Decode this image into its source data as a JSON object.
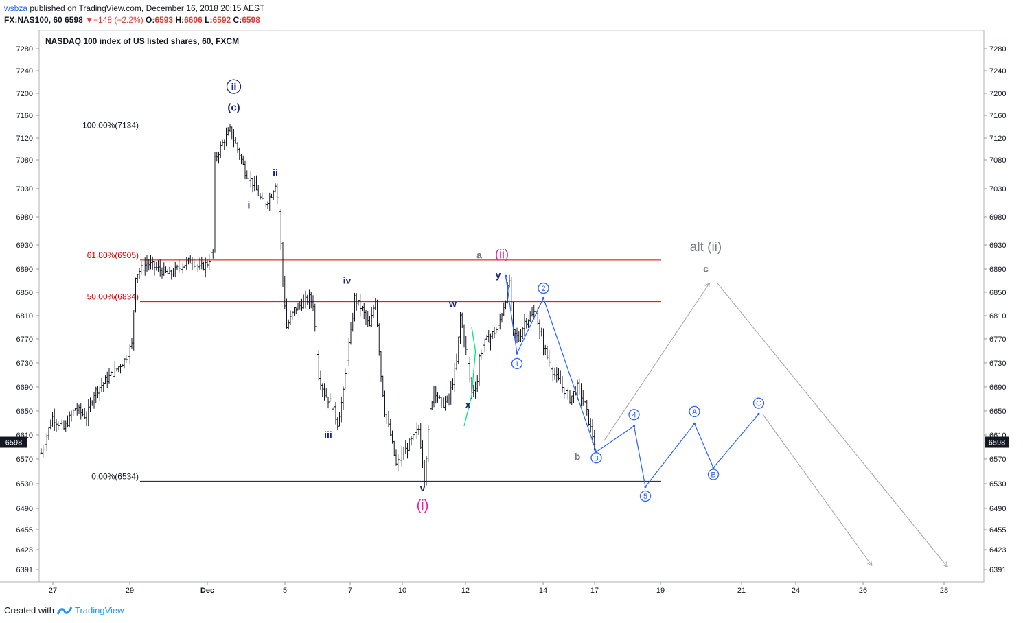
{
  "header": {
    "user": "wsbza",
    "published": "published on TradingView.com, December 16, 2018 20:15 AEST",
    "symbol": "FX:NAS100, 60",
    "last": "6598",
    "change_arrow": "▼",
    "change": "−148 (−2.2%)",
    "o_label": "O:",
    "o_value": "6593",
    "h_label": "H:",
    "h_value": "6606",
    "l_label": "L:",
    "l_value": "6592",
    "c_label": "C:",
    "c_value": "6598"
  },
  "footer": {
    "created_with": "Created with",
    "brand": "TradingView"
  },
  "chart_data": {
    "type": "candlestick",
    "title": "NASDAQ 100 index of US listed shares, 60, FXCM",
    "y_ticks": [
      7280,
      7240,
      7200,
      7160,
      7120,
      7080,
      7030,
      6980,
      6930,
      6890,
      6850,
      6810,
      6770,
      6730,
      6690,
      6650,
      6610,
      6570,
      6530,
      6490,
      6455,
      6423,
      6391
    ],
    "x_ticks": [
      "27",
      "29",
      "Dec",
      "5",
      "7",
      "10",
      "12",
      "14",
      "17",
      "19",
      "21",
      "24",
      "26",
      "28"
    ],
    "current_price": "6598",
    "price_path": [
      [
        0,
        6580
      ],
      [
        3,
        6640
      ],
      [
        6,
        6620
      ],
      [
        9,
        6655
      ],
      [
        12,
        6640
      ],
      [
        14,
        6680
      ],
      [
        17,
        6700
      ],
      [
        20,
        6720
      ],
      [
        22,
        6735
      ],
      [
        24,
        6760
      ],
      [
        25,
        6880
      ],
      [
        28,
        6900
      ],
      [
        31,
        6890
      ],
      [
        34,
        6880
      ],
      [
        37,
        6895
      ],
      [
        40,
        6905
      ],
      [
        42,
        6890
      ],
      [
        44,
        6900
      ],
      [
        45.5,
        6920
      ],
      [
        46,
        7080
      ],
      [
        48,
        7110
      ],
      [
        50,
        7134
      ],
      [
        52,
        7100
      ],
      [
        54,
        7060
      ],
      [
        56,
        7040
      ],
      [
        57.5,
        7020
      ],
      [
        59,
        7000
      ],
      [
        61,
        7020
      ],
      [
        62,
        7040
      ],
      [
        63,
        6990
      ],
      [
        64,
        6870
      ],
      [
        65,
        6790
      ],
      [
        67,
        6820
      ],
      [
        69,
        6830
      ],
      [
        71,
        6840
      ],
      [
        72,
        6830
      ],
      [
        73.5,
        6710
      ],
      [
        75,
        6680
      ],
      [
        77,
        6660
      ],
      [
        78.5,
        6630
      ],
      [
        80,
        6680
      ],
      [
        81,
        6740
      ],
      [
        82,
        6780
      ],
      [
        83,
        6840
      ],
      [
        85,
        6820
      ],
      [
        87,
        6790
      ],
      [
        88.5,
        6840
      ],
      [
        90,
        6710
      ],
      [
        91,
        6650
      ],
      [
        92.5,
        6610
      ],
      [
        94,
        6560
      ],
      [
        96,
        6580
      ],
      [
        98,
        6600
      ],
      [
        100,
        6620
      ],
      [
        101,
        6570
      ],
      [
        101.5,
        6540
      ],
      [
        103,
        6650
      ],
      [
        104,
        6690
      ],
      [
        106,
        6660
      ],
      [
        108,
        6670
      ],
      [
        110,
        6730
      ],
      [
        111,
        6810
      ],
      [
        112.5,
        6750
      ],
      [
        114,
        6680
      ],
      [
        115.5,
        6700
      ],
      [
        116,
        6740
      ],
      [
        117,
        6760
      ],
      [
        119,
        6775
      ],
      [
        121,
        6790
      ],
      [
        123,
        6840
      ],
      [
        124,
        6870
      ],
      [
        125,
        6780
      ],
      [
        126.5,
        6770
      ],
      [
        128,
        6800
      ],
      [
        130,
        6810
      ],
      [
        131,
        6820
      ],
      [
        132,
        6780
      ],
      [
        134,
        6740
      ],
      [
        136,
        6710
      ],
      [
        138,
        6690
      ],
      [
        140,
        6670
      ],
      [
        142,
        6690
      ],
      [
        144,
        6660
      ],
      [
        145.5,
        6620
      ],
      [
        146.5,
        6598
      ]
    ],
    "fib_levels": [
      {
        "label": "100.00%(7134)",
        "value": 7134,
        "color": "#131722"
      },
      {
        "label": "61.80%(6905)",
        "value": 6905,
        "color": "#d50000"
      },
      {
        "label": "50.00%(6834)",
        "value": 6834,
        "color": "#d50000"
      },
      {
        "label": "0.00%(6534)",
        "value": 6534,
        "color": "#131722"
      }
    ],
    "wave_labels": [
      {
        "text": "(c)",
        "x": 51,
        "y": 7168,
        "color": "#1a237e",
        "bold": true,
        "size": 15
      },
      {
        "text": "ii",
        "x": 62,
        "y": 7052,
        "color": "#1a237e",
        "bold": true,
        "size": 14
      },
      {
        "text": "i",
        "x": 55,
        "y": 6995,
        "color": "#1a237e",
        "bold": true,
        "size": 14
      },
      {
        "text": "iv",
        "x": 81,
        "y": 6865,
        "color": "#1a237e",
        "bold": true,
        "size": 14
      },
      {
        "text": "iii",
        "x": 76,
        "y": 6605,
        "color": "#1a237e",
        "bold": true,
        "size": 14
      },
      {
        "text": "w",
        "x": 109,
        "y": 6825,
        "color": "#1a237e",
        "bold": true,
        "size": 14
      },
      {
        "text": "x",
        "x": 113,
        "y": 6655,
        "color": "#1a237e",
        "bold": true,
        "size": 14
      },
      {
        "text": "a",
        "x": 116,
        "y": 6908,
        "color": "#787b86",
        "bold": true,
        "size": 14
      },
      {
        "text": "(ii)",
        "x": 122,
        "y": 6908,
        "color": "#e91e9f",
        "bold": false,
        "size": 18
      },
      {
        "text": "y",
        "x": 121,
        "y": 6874,
        "color": "#1a237e",
        "bold": true,
        "size": 14
      },
      {
        "text": "v",
        "x": 101,
        "y": 6518,
        "color": "#1a237e",
        "bold": true,
        "size": 14
      },
      {
        "text": "(i)",
        "x": 101,
        "y": 6488,
        "color": "#e91e9f",
        "bold": false,
        "size": 20
      },
      {
        "text": "b",
        "x": 142,
        "y": 6569,
        "color": "#787b86",
        "bold": true,
        "size": 14
      },
      {
        "text": "alt (ii)",
        "x": 176,
        "y": 6920,
        "color": "#787b86",
        "bold": false,
        "size": 19
      },
      {
        "text": "c",
        "x": 176,
        "y": 6885,
        "color": "#787b86",
        "bold": true,
        "size": 14
      }
    ],
    "circle_labels": [
      {
        "text": "ii",
        "x": 51,
        "y": 7212,
        "color": "#1a237e",
        "bold": true
      },
      {
        "text": "1",
        "x": 126,
        "y": 6729,
        "color": "#2962ff",
        "bold": false
      },
      {
        "text": "2",
        "x": 133,
        "y": 6857,
        "color": "#2962ff",
        "bold": false
      },
      {
        "text": "3",
        "x": 147,
        "y": 6572,
        "color": "#2962ff",
        "bold": false
      },
      {
        "text": "4",
        "x": 157,
        "y": 6644,
        "color": "#2962ff",
        "bold": false
      },
      {
        "text": "5",
        "x": 160,
        "y": 6510,
        "color": "#2962ff",
        "bold": false
      },
      {
        "text": "A",
        "x": 173,
        "y": 6649,
        "color": "#2962ff",
        "bold": false
      },
      {
        "text": "B",
        "x": 178,
        "y": 6545,
        "color": "#2962ff",
        "bold": false
      },
      {
        "text": "C",
        "x": 190,
        "y": 6663,
        "color": "#2962ff",
        "bold": false
      }
    ],
    "projection_blue": [
      [
        123,
        6878
      ],
      [
        126,
        6746
      ],
      [
        133,
        6840
      ],
      [
        147,
        6582
      ],
      [
        157,
        6625
      ],
      [
        160,
        6525
      ],
      [
        173,
        6629
      ],
      [
        178,
        6556
      ],
      [
        190,
        6645
      ]
    ],
    "projection_blue_early": [
      [
        123,
        6878
      ],
      [
        124,
        6850
      ]
    ],
    "projection_gray": [
      [
        [
          149,
          6600
        ],
        [
          177,
          6866
        ]
      ],
      [
        [
          179,
          6866
        ],
        [
          240,
          6395
        ]
      ],
      [
        [
          191,
          6645
        ],
        [
          220,
          6397
        ]
      ]
    ],
    "green_segment": [
      [
        112,
        6625
      ],
      [
        114,
        6676
      ],
      [
        115,
        6750
      ],
      [
        114,
        6790
      ]
    ]
  }
}
